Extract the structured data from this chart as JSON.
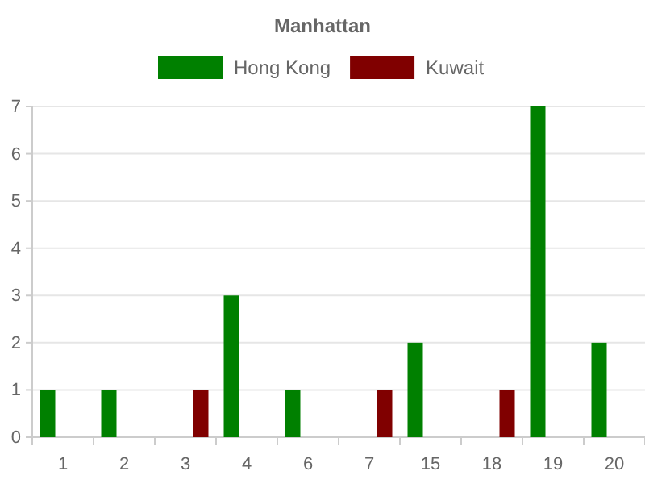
{
  "chart_data": {
    "type": "bar",
    "title": "Manhattan",
    "categories": [
      "1",
      "2",
      "3",
      "4",
      "6",
      "7",
      "15",
      "18",
      "19",
      "20"
    ],
    "series": [
      {
        "name": "Hong Kong",
        "color": "#008000",
        "values": [
          1,
          1,
          0,
          3,
          1,
          0,
          2,
          0,
          7,
          2
        ]
      },
      {
        "name": "Kuwait",
        "color": "#800000",
        "values": [
          0,
          0,
          1,
          0,
          0,
          1,
          0,
          1,
          0,
          0
        ]
      }
    ],
    "ylim": [
      0,
      7
    ],
    "yticks": [
      0,
      1,
      2,
      3,
      4,
      5,
      6,
      7
    ],
    "grid": "y",
    "legend": "top"
  }
}
